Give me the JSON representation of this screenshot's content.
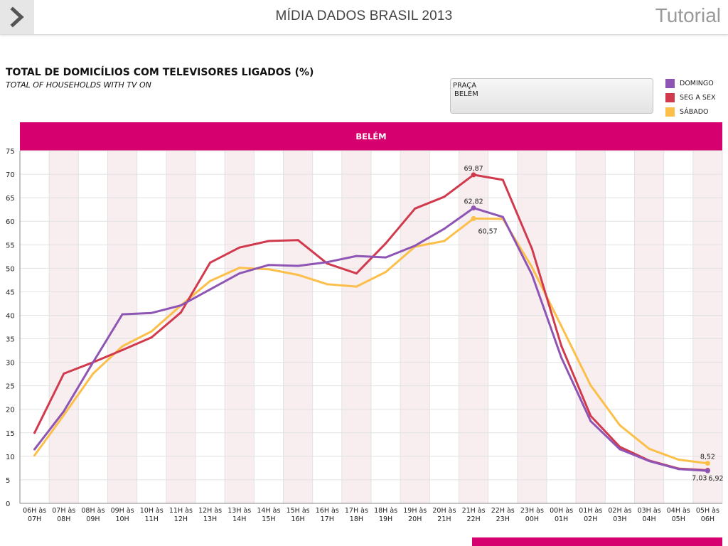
{
  "header": {
    "title": "MÍDIA DADOS BRASIL 2013",
    "tutorial_label": "Tutorial",
    "back_icon": "chevron-right-icon"
  },
  "chart_header": {
    "title": "TOTAL DE DOMICÍLIOS COM TELEVISORES LIGADOS (%)",
    "subtitle": "TOTAL OF HOUSEHOLDS WITH TV ON"
  },
  "selector": {
    "label": "PRAÇA",
    "value": "BELÉM"
  },
  "legend": [
    {
      "label": "DOMINGO",
      "color": "#8e55b4"
    },
    {
      "label": "SEG A SEX",
      "color": "#d13a4d"
    },
    {
      "label": "SÁBADO",
      "color": "#fbbf4a"
    }
  ],
  "band": {
    "label": "BELÉM"
  },
  "chart_data": {
    "type": "line",
    "title": "TOTAL DE DOMICÍLIOS COM TELEVISORES LIGADOS (%)",
    "ylim": [
      0,
      75
    ],
    "yticks": [
      0,
      5,
      10,
      15,
      20,
      25,
      30,
      35,
      40,
      45,
      50,
      55,
      60,
      65,
      70,
      75
    ],
    "grid": true,
    "legend_position": "top-right",
    "categories": [
      [
        "06H às",
        "07H"
      ],
      [
        "07H às",
        "08H"
      ],
      [
        "08H às",
        "09H"
      ],
      [
        "09H às",
        "10H"
      ],
      [
        "10H às",
        "11H"
      ],
      [
        "11H às",
        "12H"
      ],
      [
        "12H às",
        "13H"
      ],
      [
        "13H às",
        "14H"
      ],
      [
        "14H às",
        "15H"
      ],
      [
        "15H às",
        "16H"
      ],
      [
        "16H às",
        "17H"
      ],
      [
        "17H às",
        "18H"
      ],
      [
        "18H às",
        "19H"
      ],
      [
        "19H às",
        "20H"
      ],
      [
        "20H às",
        "21H"
      ],
      [
        "21H às",
        "22H"
      ],
      [
        "22H às",
        "23H"
      ],
      [
        "23H às",
        "00H"
      ],
      [
        "00H às",
        "01H"
      ],
      [
        "01H às",
        "02H"
      ],
      [
        "02H às",
        "03H"
      ],
      [
        "03H às",
        "04H"
      ],
      [
        "04H às",
        "05H"
      ],
      [
        "05H às",
        "06H"
      ]
    ],
    "series": [
      {
        "name": "SÁBADO",
        "color": "#fbbf4a",
        "values": [
          10.2,
          18.8,
          27.6,
          33.4,
          36.6,
          42.1,
          47.3,
          50.1,
          49.8,
          48.6,
          46.6,
          46.1,
          49.2,
          54.6,
          55.8,
          60.57,
          60.5,
          50.2,
          37.7,
          25.1,
          16.6,
          11.6,
          9.3,
          8.52
        ],
        "labels": {
          "15": "60,57",
          "23": "8,52"
        }
      },
      {
        "name": "SEG A SEX",
        "color": "#d13a4d",
        "values": [
          15.0,
          27.6,
          30.0,
          32.6,
          35.3,
          40.6,
          51.2,
          54.4,
          55.8,
          56.0,
          51.0,
          48.9,
          55.3,
          62.7,
          65.2,
          69.87,
          68.8,
          54.1,
          33.5,
          18.6,
          12.0,
          9.1,
          7.4,
          7.03
        ],
        "labels": {
          "15": "69,87",
          "23": "7,03"
        }
      },
      {
        "name": "DOMINGO",
        "color": "#8e55b4",
        "values": [
          11.5,
          19.6,
          30.0,
          40.2,
          40.5,
          42.1,
          45.5,
          48.9,
          50.7,
          50.5,
          51.3,
          52.6,
          52.3,
          54.8,
          58.4,
          62.82,
          60.9,
          48.6,
          31.0,
          17.5,
          11.5,
          9.0,
          7.3,
          6.92
        ],
        "labels": {
          "15": "62,82",
          "23": "6,92"
        }
      }
    ]
  }
}
